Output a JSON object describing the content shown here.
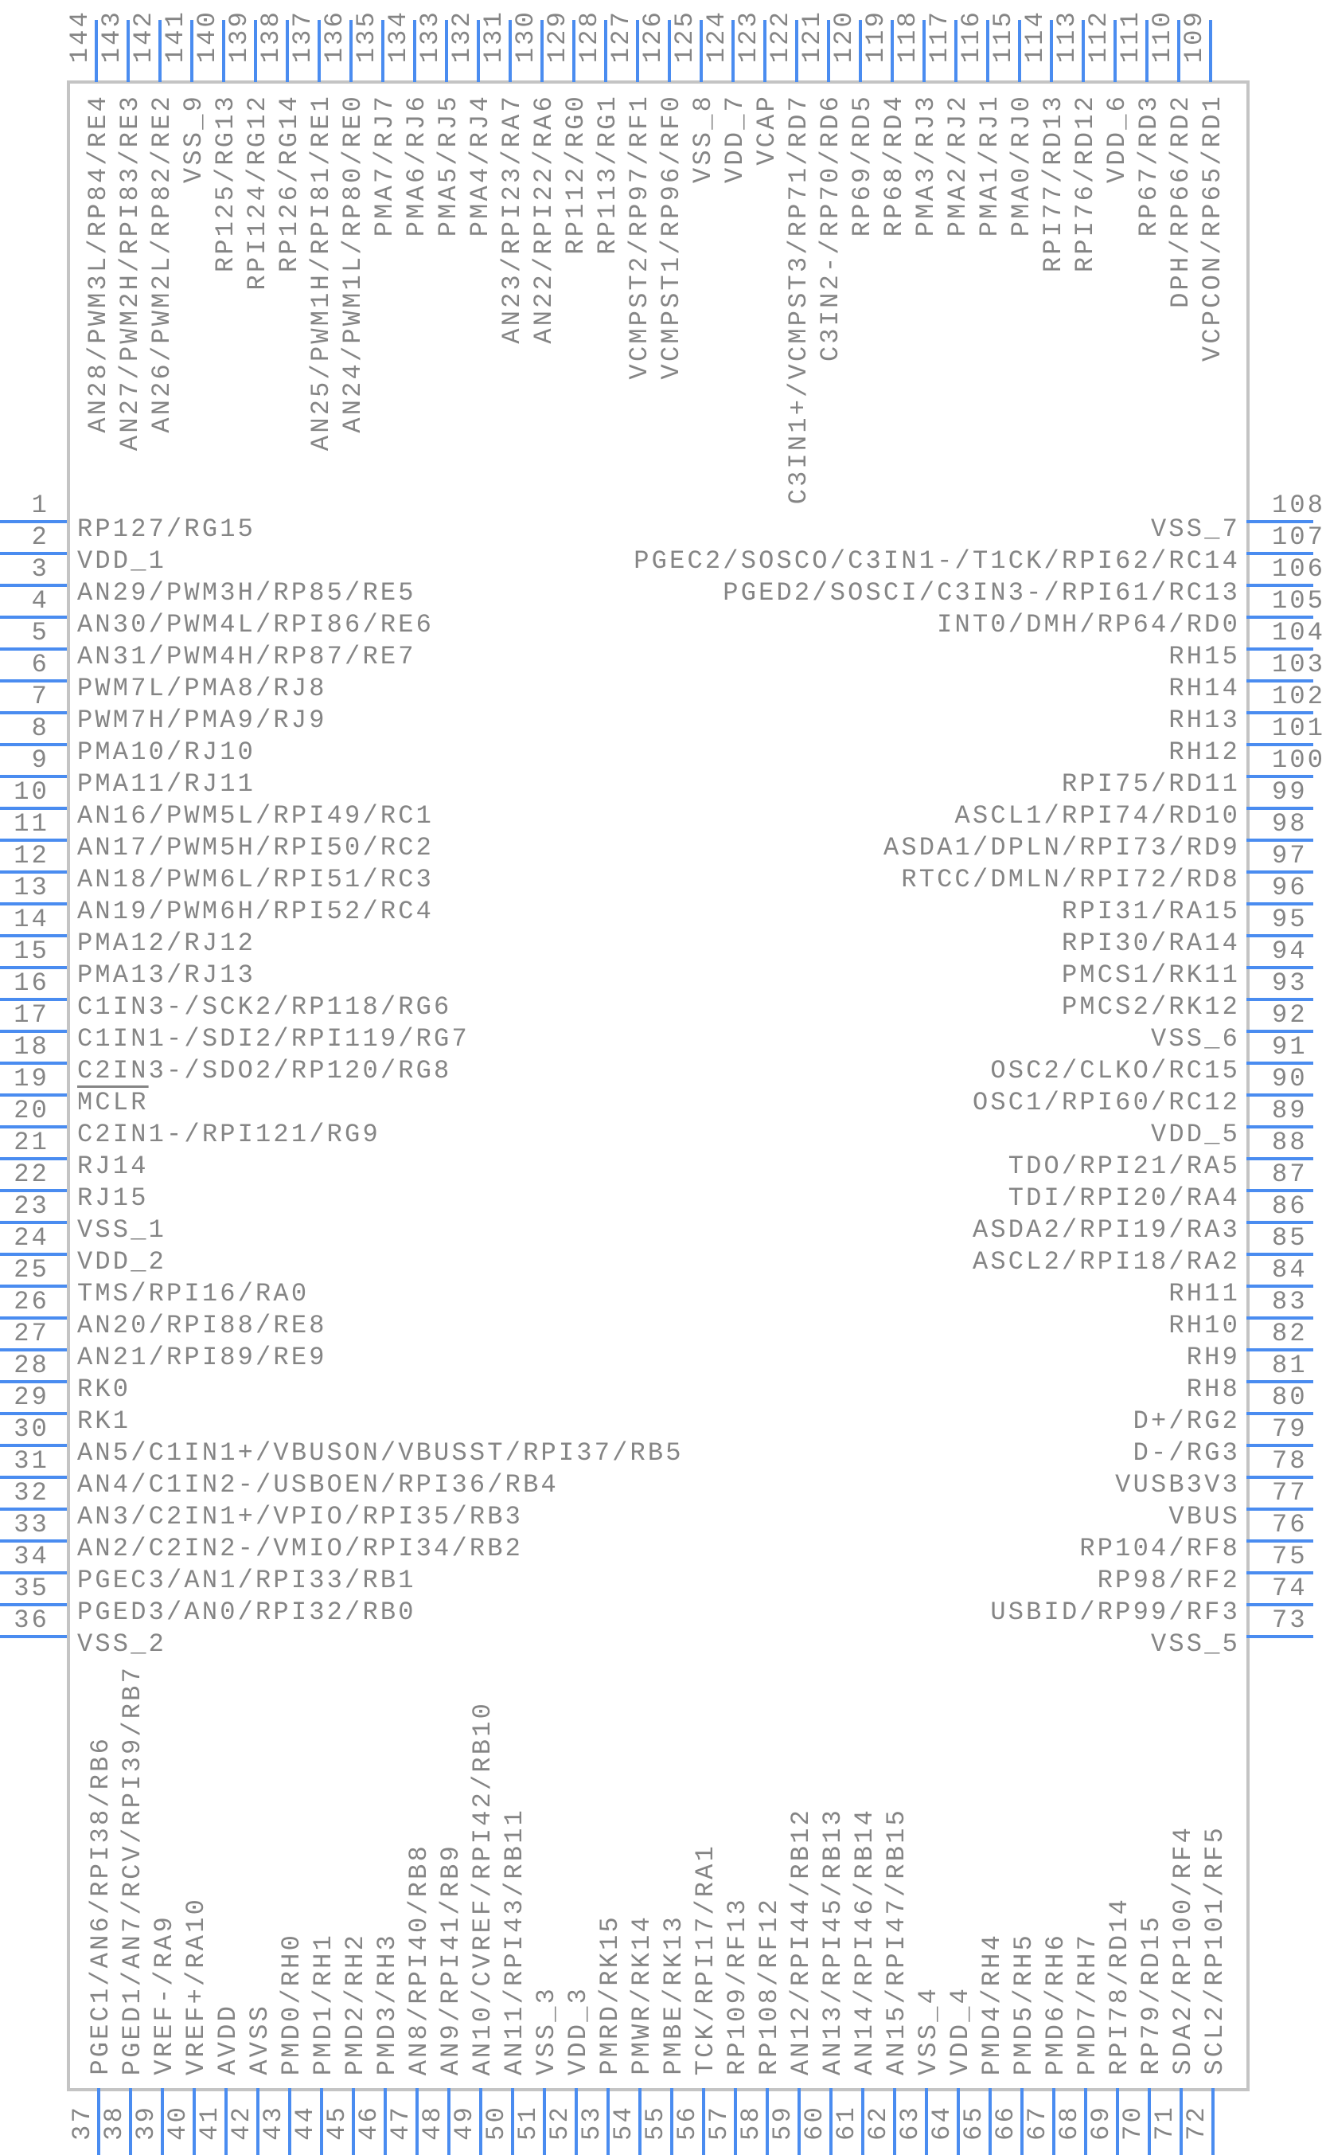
{
  "colors": {
    "pin": "#4a8cf0",
    "outline": "#c4c4c4",
    "text": "#858585"
  },
  "pins": {
    "left": [
      {
        "num": "1",
        "label": "RP127/RG15"
      },
      {
        "num": "2",
        "label": "VDD_1"
      },
      {
        "num": "3",
        "label": "AN29/PWM3H/RP85/RE5"
      },
      {
        "num": "4",
        "label": "AN30/PWM4L/RPI86/RE6"
      },
      {
        "num": "5",
        "label": "AN31/PWM4H/RP87/RE7"
      },
      {
        "num": "6",
        "label": "PWM7L/PMA8/RJ8"
      },
      {
        "num": "7",
        "label": "PWM7H/PMA9/RJ9"
      },
      {
        "num": "8",
        "label": "PMA10/RJ10"
      },
      {
        "num": "9",
        "label": "PMA11/RJ11"
      },
      {
        "num": "10",
        "label": "AN16/PWM5L/RPI49/RC1"
      },
      {
        "num": "11",
        "label": "AN17/PWM5H/RPI50/RC2"
      },
      {
        "num": "12",
        "label": "AN18/PWM6L/RPI51/RC3"
      },
      {
        "num": "13",
        "label": "AN19/PWM6H/RPI52/RC4"
      },
      {
        "num": "14",
        "label": "PMA12/RJ12"
      },
      {
        "num": "15",
        "label": "PMA13/RJ13"
      },
      {
        "num": "16",
        "label": "C1IN3-/SCK2/RP118/RG6"
      },
      {
        "num": "17",
        "label": "C1IN1-/SDI2/RPI119/RG7"
      },
      {
        "num": "18",
        "label": "C2IN3-/SDO2/RP120/RG8"
      },
      {
        "num": "19",
        "label": "MCLR"
      },
      {
        "num": "20",
        "label": "C2IN1-/RPI121/RG9"
      },
      {
        "num": "21",
        "label": "RJ14"
      },
      {
        "num": "22",
        "label": "RJ15"
      },
      {
        "num": "23",
        "label": "VSS_1"
      },
      {
        "num": "24",
        "label": "VDD_2"
      },
      {
        "num": "25",
        "label": "TMS/RPI16/RA0"
      },
      {
        "num": "26",
        "label": "AN20/RPI88/RE8"
      },
      {
        "num": "27",
        "label": "AN21/RPI89/RE9"
      },
      {
        "num": "28",
        "label": "RK0"
      },
      {
        "num": "29",
        "label": "RK1"
      },
      {
        "num": "30",
        "label": "AN5/C1IN1+/VBUSON/VBUSST/RPI37/RB5"
      },
      {
        "num": "31",
        "label": "AN4/C1IN2-/USBOEN/RPI36/RB4"
      },
      {
        "num": "32",
        "label": "AN3/C2IN1+/VPIO/RPI35/RB3"
      },
      {
        "num": "33",
        "label": "AN2/C2IN2-/VMIO/RPI34/RB2"
      },
      {
        "num": "34",
        "label": "PGEC3/AN1/RPI33/RB1"
      },
      {
        "num": "35",
        "label": "PGED3/AN0/RPI32/RB0"
      },
      {
        "num": "36",
        "label": "VSS_2"
      }
    ],
    "bottom": [
      {
        "num": "37",
        "label": "PGEC1/AN6/RPI38/RB6"
      },
      {
        "num": "38",
        "label": "PGED1/AN7/RCV/RPI39/RB7"
      },
      {
        "num": "39",
        "label": "VREF-/RA9"
      },
      {
        "num": "40",
        "label": "VREF+/RA10"
      },
      {
        "num": "41",
        "label": "AVDD"
      },
      {
        "num": "42",
        "label": "AVSS"
      },
      {
        "num": "43",
        "label": "PMD0/RH0"
      },
      {
        "num": "44",
        "label": "PMD1/RH1"
      },
      {
        "num": "45",
        "label": "PMD2/RH2"
      },
      {
        "num": "46",
        "label": "PMD3/RH3"
      },
      {
        "num": "47",
        "label": "AN8/RPI40/RB8"
      },
      {
        "num": "48",
        "label": "AN9/RPI41/RB9"
      },
      {
        "num": "49",
        "label": "AN10/CVREF/RPI42/RB10"
      },
      {
        "num": "50",
        "label": "AN11/RPI43/RB11"
      },
      {
        "num": "51",
        "label": "VSS_3"
      },
      {
        "num": "52",
        "label": "VDD_3"
      },
      {
        "num": "53",
        "label": "PMRD/RK15"
      },
      {
        "num": "54",
        "label": "PMWR/RK14"
      },
      {
        "num": "55",
        "label": "PMBE/RK13"
      },
      {
        "num": "56",
        "label": "TCK/RPI17/RA1"
      },
      {
        "num": "57",
        "label": "RP109/RF13"
      },
      {
        "num": "58",
        "label": "RP108/RF12"
      },
      {
        "num": "59",
        "label": "AN12/RPI44/RB12"
      },
      {
        "num": "60",
        "label": "AN13/RPI45/RB13"
      },
      {
        "num": "61",
        "label": "AN14/RPI46/RB14"
      },
      {
        "num": "62",
        "label": "AN15/RPI47/RB15"
      },
      {
        "num": "63",
        "label": "VSS_4"
      },
      {
        "num": "64",
        "label": "VDD_4"
      },
      {
        "num": "65",
        "label": "PMD4/RH4"
      },
      {
        "num": "66",
        "label": "PMD5/RH5"
      },
      {
        "num": "67",
        "label": "PMD6/RH6"
      },
      {
        "num": "68",
        "label": "PMD7/RH7"
      },
      {
        "num": "69",
        "label": "RPI78/RD14"
      },
      {
        "num": "70",
        "label": "RP79/RD15"
      },
      {
        "num": "71",
        "label": "SDA2/RP100/RF4"
      },
      {
        "num": "72",
        "label": "SCL2/RP101/RF5"
      }
    ],
    "right": [
      {
        "num": "73",
        "label": "VSS_5"
      },
      {
        "num": "74",
        "label": "USBID/RP99/RF3"
      },
      {
        "num": "75",
        "label": "RP98/RF2"
      },
      {
        "num": "76",
        "label": "RP104/RF8"
      },
      {
        "num": "77",
        "label": "VBUS"
      },
      {
        "num": "78",
        "label": "VUSB3V3"
      },
      {
        "num": "79",
        "label": "D-/RG3"
      },
      {
        "num": "80",
        "label": "D+/RG2"
      },
      {
        "num": "81",
        "label": "RH8"
      },
      {
        "num": "82",
        "label": "RH9"
      },
      {
        "num": "83",
        "label": "RH10"
      },
      {
        "num": "84",
        "label": "RH11"
      },
      {
        "num": "85",
        "label": "ASCL2/RPI18/RA2"
      },
      {
        "num": "86",
        "label": "ASDA2/RPI19/RA3"
      },
      {
        "num": "87",
        "label": "TDI/RPI20/RA4"
      },
      {
        "num": "88",
        "label": "TDO/RPI21/RA5"
      },
      {
        "num": "89",
        "label": "VDD_5"
      },
      {
        "num": "90",
        "label": "OSC1/RPI60/RC12"
      },
      {
        "num": "91",
        "label": "OSC2/CLKO/RC15"
      },
      {
        "num": "92",
        "label": "VSS_6"
      },
      {
        "num": "93",
        "label": "PMCS2/RK12"
      },
      {
        "num": "94",
        "label": "PMCS1/RK11"
      },
      {
        "num": "95",
        "label": "RPI30/RA14"
      },
      {
        "num": "96",
        "label": "RPI31/RA15"
      },
      {
        "num": "97",
        "label": "RTCC/DMLN/RPI72/RD8"
      },
      {
        "num": "98",
        "label": "ASDA1/DPLN/RPI73/RD9"
      },
      {
        "num": "99",
        "label": "ASCL1/RPI74/RD10"
      },
      {
        "num": "100",
        "label": "RPI75/RD11"
      },
      {
        "num": "101",
        "label": "RH12"
      },
      {
        "num": "102",
        "label": "RH13"
      },
      {
        "num": "103",
        "label": "RH14"
      },
      {
        "num": "104",
        "label": "RH15"
      },
      {
        "num": "105",
        "label": "INT0/DMH/RP64/RD0"
      },
      {
        "num": "106",
        "label": "PGED2/SOSCI/C3IN3-/RPI61/RC13"
      },
      {
        "num": "107",
        "label": "PGEC2/SOSCO/C3IN1-/T1CK/RPI62/RC14"
      },
      {
        "num": "108",
        "label": "VSS_7"
      }
    ],
    "top": [
      {
        "num": "109",
        "label": "VCPCON/RP65/RD1"
      },
      {
        "num": "110",
        "label": "DPH/RP66/RD2"
      },
      {
        "num": "111",
        "label": "RP67/RD3"
      },
      {
        "num": "112",
        "label": "VDD_6"
      },
      {
        "num": "113",
        "label": "RPI76/RD12"
      },
      {
        "num": "114",
        "label": "RPI77/RD13"
      },
      {
        "num": "115",
        "label": "PMA0/RJ0"
      },
      {
        "num": "116",
        "label": "PMA1/RJ1"
      },
      {
        "num": "117",
        "label": "PMA2/RJ2"
      },
      {
        "num": "118",
        "label": "PMA3/RJ3"
      },
      {
        "num": "119",
        "label": "RP68/RD4"
      },
      {
        "num": "120",
        "label": "RP69/RD5"
      },
      {
        "num": "121",
        "label": "C3IN2-/RP70/RD6"
      },
      {
        "num": "122",
        "label": "C3IN1+/VCMPST3/RP71/RD7"
      },
      {
        "num": "123",
        "label": "VCAP"
      },
      {
        "num": "124",
        "label": "VDD_7"
      },
      {
        "num": "125",
        "label": "VSS_8"
      },
      {
        "num": "126",
        "label": "VCMPST1/RP96/RF0"
      },
      {
        "num": "127",
        "label": "VCMPST2/RP97/RF1"
      },
      {
        "num": "128",
        "label": "RP113/RG1"
      },
      {
        "num": "129",
        "label": "RP112/RG0"
      },
      {
        "num": "130",
        "label": "AN22/RPI22/RA6"
      },
      {
        "num": "131",
        "label": "AN23/RPI23/RA7"
      },
      {
        "num": "132",
        "label": "PMA4/RJ4"
      },
      {
        "num": "133",
        "label": "PMA5/RJ5"
      },
      {
        "num": "134",
        "label": "PMA6/RJ6"
      },
      {
        "num": "135",
        "label": "PMA7/RJ7"
      },
      {
        "num": "136",
        "label": "AN24/PWM1L/RP80/RE0"
      },
      {
        "num": "137",
        "label": "AN25/PWM1H/RPI81/RE1"
      },
      {
        "num": "138",
        "label": "RP126/RG14"
      },
      {
        "num": "139",
        "label": "RPI124/RG12"
      },
      {
        "num": "140",
        "label": "RP125/RG13"
      },
      {
        "num": "141",
        "label": "VSS_9"
      },
      {
        "num": "142",
        "label": "AN26/PWM2L/RP82/RE2"
      },
      {
        "num": "143",
        "label": "AN27/PWM2H/RPI83/RE3"
      },
      {
        "num": "144",
        "label": "AN28/PWM3L/RP84/RE4"
      }
    ]
  }
}
